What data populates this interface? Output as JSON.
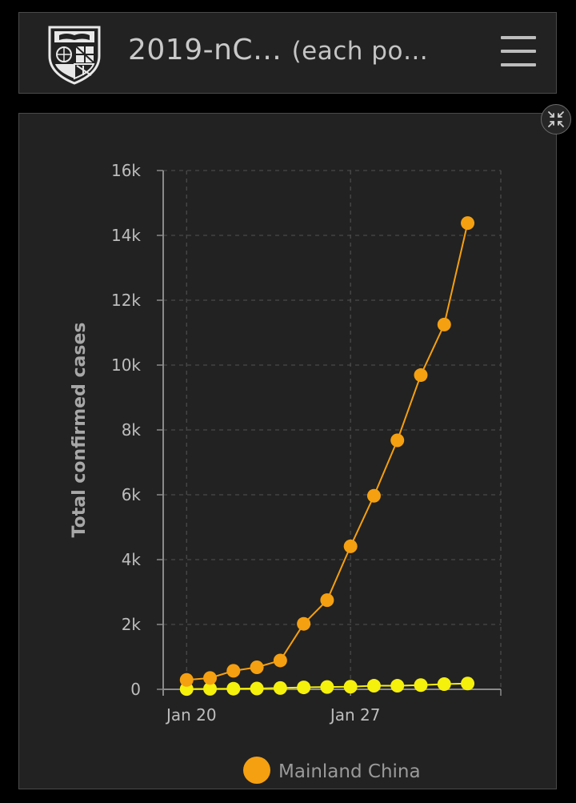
{
  "header": {
    "title": "2019-nC…",
    "subtitle": "(each po…",
    "logo_icon": "university-shield-icon",
    "menu_icon": "hamburger-menu-icon"
  },
  "panel": {
    "collapse_icon": "collapse-arrows-icon"
  },
  "colors": {
    "background": "#000000",
    "panel": "#222222",
    "series_china": "#f5a010",
    "series_other": "#f5f00c",
    "grid": "#4a4a4a",
    "text": "#bdbdbd"
  },
  "chart_data": {
    "type": "line",
    "ylabel": "Total confirmed cases",
    "xlabel": "",
    "ylim": [
      0,
      16000
    ],
    "yticks": [
      0,
      2000,
      4000,
      6000,
      8000,
      10000,
      12000,
      14000,
      16000
    ],
    "ytick_labels": [
      "0",
      "2k",
      "4k",
      "6k",
      "8k",
      "10k",
      "12k",
      "14k",
      "16k"
    ],
    "x_ticks": [
      {
        "label": "Jan 20",
        "date": "2020-01-20"
      },
      {
        "label": "Jan 27",
        "date": "2020-01-27"
      }
    ],
    "x": [
      "2020-01-20",
      "2020-01-21",
      "2020-01-22",
      "2020-01-23",
      "2020-01-24",
      "2020-01-25",
      "2020-01-26",
      "2020-01-27",
      "2020-01-28",
      "2020-01-29",
      "2020-01-30",
      "2020-01-31",
      "2020-02-01",
      "2020-02-02"
    ],
    "grid": true,
    "legend_position": "bottom",
    "series": [
      {
        "name": "Mainland China",
        "color": "#f5a010",
        "values": [
          290,
          350,
          570,
          680,
          890,
          2020,
          2750,
          4410,
          5970,
          7680,
          9690,
          11250,
          14380,
          null
        ]
      },
      {
        "color": "#f5f00c",
        "values": [
          10,
          15,
          20,
          25,
          40,
          60,
          70,
          80,
          110,
          110,
          130,
          160,
          180,
          null
        ]
      }
    ]
  }
}
